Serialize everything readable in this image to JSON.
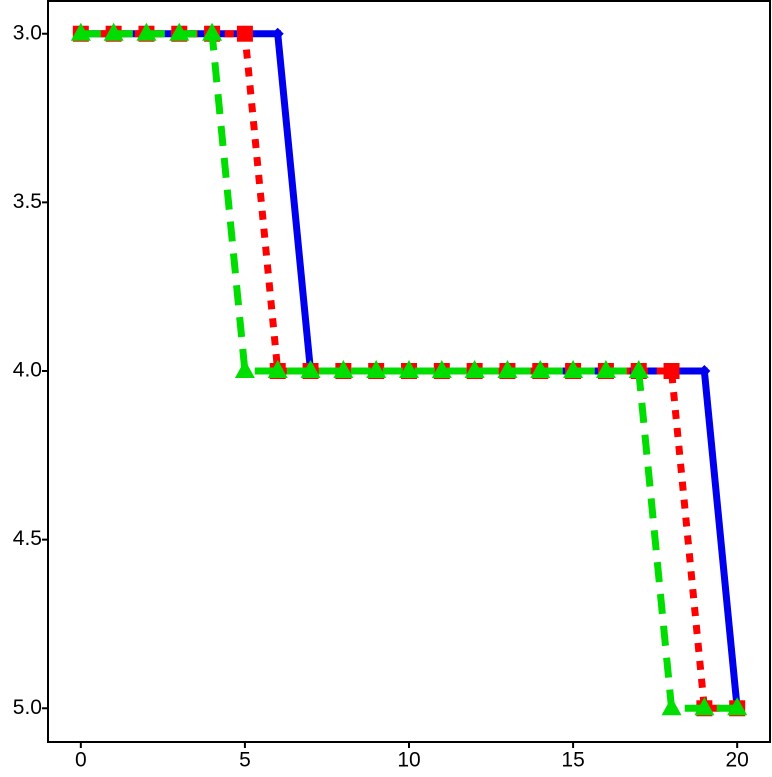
{
  "chart_data": {
    "type": "line",
    "x": [
      0,
      1,
      2,
      3,
      4,
      5,
      6,
      7,
      8,
      9,
      10,
      11,
      12,
      13,
      14,
      15,
      16,
      17,
      18,
      19,
      20
    ],
    "series": [
      {
        "color": "#0000ee",
        "linestyle": "solid",
        "marker": "diamond",
        "values": [
          3,
          3,
          3,
          3,
          3,
          3,
          3,
          4,
          4,
          4,
          4,
          4,
          4,
          4,
          4,
          4,
          4,
          4,
          4,
          4,
          5
        ]
      },
      {
        "color": "#ff0000",
        "linestyle": "dotted",
        "marker": "square",
        "values": [
          3,
          3,
          3,
          3,
          3,
          3,
          4,
          4,
          4,
          4,
          4,
          4,
          4,
          4,
          4,
          4,
          4,
          4,
          4,
          5,
          5
        ]
      },
      {
        "color": "#00dd00",
        "linestyle": "dashed",
        "marker": "triangle",
        "values": [
          3,
          3,
          3,
          3,
          3,
          4,
          4,
          4,
          4,
          4,
          4,
          4,
          4,
          4,
          4,
          4,
          4,
          4,
          5,
          5,
          5
        ]
      }
    ],
    "xlim": [
      -1,
      21
    ],
    "xticks": [
      0,
      5,
      10,
      15,
      20
    ],
    "ylim": [
      2.9,
      5.1
    ],
    "y_inverted": true,
    "yticks": [
      {
        "value": 3,
        "label": "3.0"
      },
      {
        "value": 3.5,
        "label": "3.5"
      },
      {
        "value": 4,
        "label": "4.0"
      },
      {
        "value": 4.5,
        "label": "4.5"
      },
      {
        "value": 5,
        "label": "5.0"
      }
    ],
    "grid": false
  }
}
